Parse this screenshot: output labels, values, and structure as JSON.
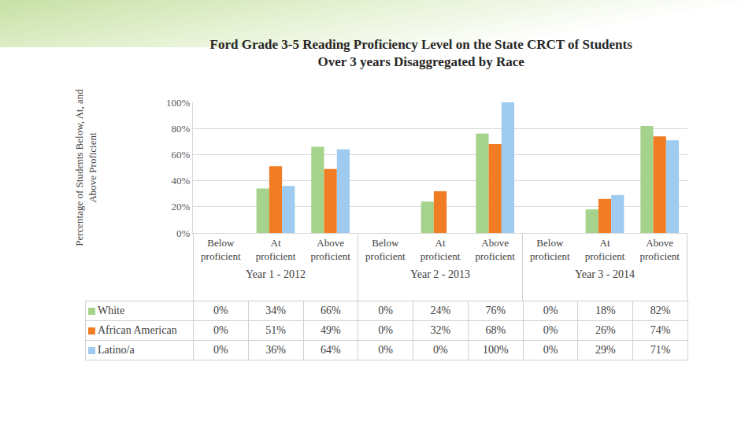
{
  "chart_data": {
    "type": "bar",
    "title": "Ford Grade 3-5 Reading Proficiency Level on the State CRCT of Students Over 3 years Disaggregated by Race",
    "y_label": "Percentage of Students Below, At, and Above Proficient",
    "groups": [
      "Year 1 - 2012",
      "Year 2 - 2013",
      "Year 3 - 2014"
    ],
    "categories": [
      "Below proficient",
      "At proficient",
      "Above proficient",
      "Below proficient",
      "At proficient",
      "Above proficient",
      "Below proficient",
      "At proficient",
      "Above proficient"
    ],
    "series": [
      {
        "name": "White",
        "color": "#a5d38b",
        "values": [
          0,
          34,
          66,
          0,
          24,
          76,
          0,
          18,
          82
        ],
        "value_labels": [
          "0%",
          "34%",
          "66%",
          "0%",
          "24%",
          "76%",
          "0%",
          "18%",
          "82%"
        ]
      },
      {
        "name": "African American",
        "color": "#f07c24",
        "values": [
          0,
          51,
          49,
          0,
          32,
          68,
          0,
          26,
          74
        ],
        "value_labels": [
          "0%",
          "51%",
          "49%",
          "0%",
          "32%",
          "68%",
          "0%",
          "26%",
          "74%"
        ]
      },
      {
        "name": "Latino/a",
        "color": "#9fcbf0",
        "values": [
          0,
          36,
          64,
          0,
          0,
          100,
          0,
          29,
          71
        ],
        "value_labels": [
          "0%",
          "36%",
          "64%",
          "0%",
          "0%",
          "100%",
          "0%",
          "29%",
          "71%"
        ]
      }
    ],
    "ylim": [
      0,
      100
    ],
    "yticks": [
      {
        "value": 0,
        "label": "0%"
      },
      {
        "value": 20,
        "label": "20%"
      },
      {
        "value": 40,
        "label": "40%"
      },
      {
        "value": 60,
        "label": "60%"
      },
      {
        "value": 80,
        "label": "80%"
      },
      {
        "value": 100,
        "label": "100%"
      }
    ],
    "grid": true
  }
}
